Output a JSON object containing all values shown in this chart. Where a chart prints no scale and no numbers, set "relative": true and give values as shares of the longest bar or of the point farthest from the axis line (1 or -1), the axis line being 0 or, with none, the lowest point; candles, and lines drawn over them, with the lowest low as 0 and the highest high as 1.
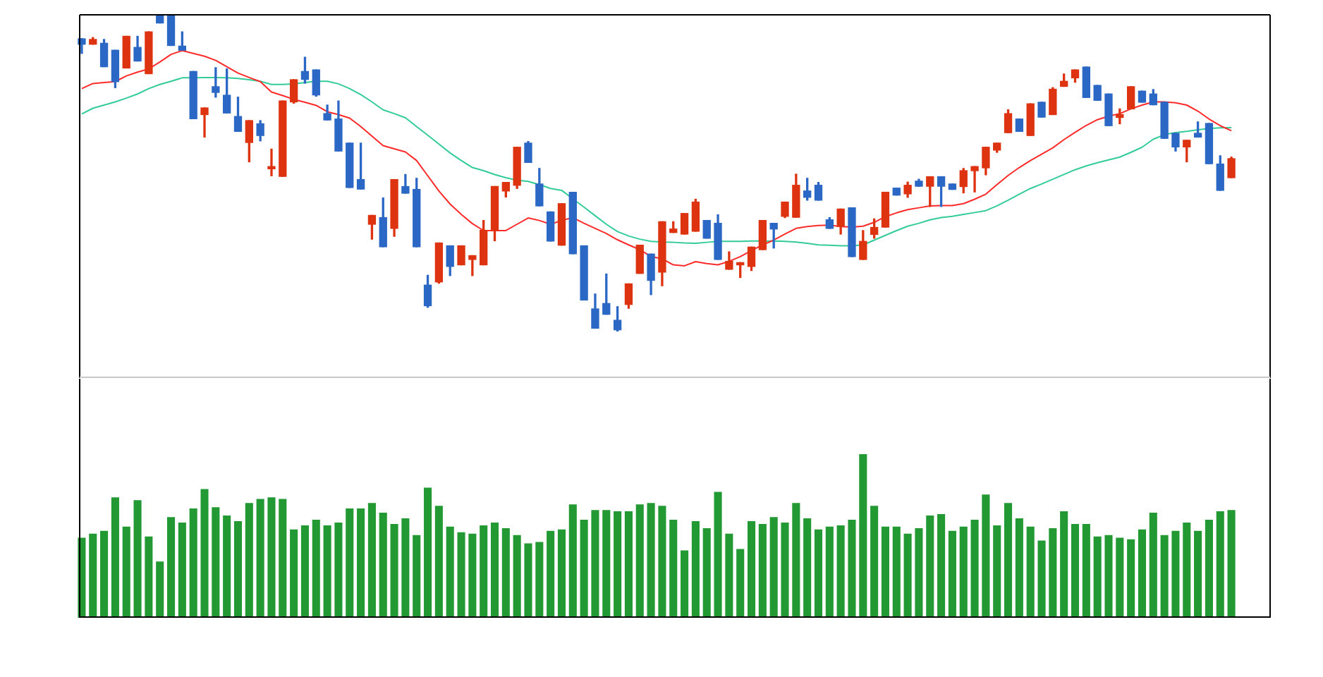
{
  "chart_data": [
    {
      "type": "candlestick",
      "relative": true,
      "categories": [
        null,
        null,
        null,
        null,
        null,
        null,
        null,
        null,
        null,
        null,
        null,
        null,
        null,
        null,
        null,
        null,
        null,
        null,
        null,
        null,
        null,
        null,
        null,
        null,
        null,
        null,
        null,
        null,
        null,
        null,
        null,
        null,
        null,
        null,
        null,
        null,
        null,
        null,
        null,
        null,
        null,
        null,
        null,
        null,
        null,
        null,
        null,
        null,
        null,
        null,
        null,
        null,
        null,
        null,
        null,
        null,
        null,
        null,
        null,
        null,
        null,
        null,
        null,
        null,
        null,
        null,
        null,
        null,
        null,
        null,
        null,
        null,
        null,
        null,
        null,
        null,
        null,
        null,
        null,
        null,
        null,
        null,
        null,
        null,
        null,
        null,
        null,
        null,
        null,
        null,
        null,
        null,
        null,
        null,
        null,
        null,
        null,
        null,
        null,
        null,
        null,
        null,
        null,
        null
      ],
      "ohlc": [
        [
          0.922,
          0.923,
          0.876,
          0.905
        ],
        [
          0.905,
          0.926,
          0.905,
          0.92
        ],
        [
          0.908,
          0.92,
          0.834,
          0.834
        ],
        [
          0.886,
          0.886,
          0.768,
          0.787
        ],
        [
          0.83,
          0.93,
          0.83,
          0.93
        ],
        [
          0.895,
          0.93,
          0.852,
          0.852
        ],
        [
          0.812,
          0.944,
          0.812,
          0.944
        ],
        [
          1,
          1,
          0.972,
          0.972
        ],
        [
          1,
          1,
          0.901,
          0.901
        ],
        [
          0.899,
          0.944,
          0.886,
          0.886
        ],
        [
          0.819,
          0.819,
          0.67,
          0.67
        ],
        [
          0.683,
          0.704,
          0.612,
          0.704
        ],
        [
          0.771,
          0.831,
          0.738,
          0.753
        ],
        [
          0.744,
          0.827,
          0.688,
          0.688
        ],
        [
          0.677,
          0.738,
          0.63,
          0.63
        ],
        [
          0.595,
          0.664,
          0.534,
          0.664
        ],
        [
          0.654,
          0.664,
          0.6,
          0.617
        ],
        [
          0.512,
          0.574,
          0.49,
          0.519
        ],
        [
          0.488,
          0.726,
          0.488,
          0.726
        ],
        [
          0.723,
          0.793,
          0.719,
          0.793
        ],
        [
          0.819,
          0.864,
          0.782,
          0.794
        ],
        [
          0.824,
          0.824,
          0.741,
          0.745
        ],
        [
          0.686,
          0.713,
          0.666,
          0.666
        ],
        [
          0.669,
          0.726,
          0.568,
          0.568
        ],
        [
          0.593,
          0.593,
          0.453,
          0.453
        ],
        [
          0.478,
          0.593,
          0.448,
          0.448
        ],
        [
          0.337,
          0.365,
          0.29,
          0.365
        ],
        [
          0.358,
          0.42,
          0.266,
          0.266
        ],
        [
          0.324,
          0.478,
          0.299,
          0.478
        ],
        [
          0.456,
          0.494,
          0.435,
          0.435
        ],
        [
          0.447,
          0.482,
          0.266,
          0.266
        ],
        [
          0.145,
          0.176,
          0.075,
          0.08
        ],
        [
          0.155,
          0.278,
          0.151,
          0.278
        ],
        [
          0.269,
          0.269,
          0.175,
          0.204
        ],
        [
          0.209,
          0.269,
          0.209,
          0.269
        ],
        [
          0.226,
          0.238,
          0.175,
          0.238
        ],
        [
          0.209,
          0.349,
          0.209,
          0.318
        ],
        [
          0.318,
          0.456,
          0.285,
          0.456
        ],
        [
          0.442,
          0.469,
          0.423,
          0.469
        ],
        [
          0.46,
          0.58,
          0.45,
          0.58
        ],
        [
          0.593,
          0.598,
          0.532,
          0.532
        ],
        [
          0.464,
          0.513,
          0.395,
          0.395
        ],
        [
          0.376,
          0.376,
          0.284,
          0.284
        ],
        [
          0.271,
          0.402,
          0.271,
          0.402
        ],
        [
          0.438,
          0.438,
          0.244,
          0.244
        ],
        [
          0.269,
          0.269,
          0.098,
          0.098
        ],
        [
          0.07,
          0.117,
          0.009,
          0.009
        ],
        [
          0.087,
          0.18,
          0.053,
          0.053
        ],
        [
          0.034,
          0.077,
          0,
          0.004
        ],
        [
          0.084,
          0.149,
          0.072,
          0.149
        ],
        [
          0.182,
          0.271,
          0.182,
          0.271
        ],
        [
          0.243,
          0.243,
          0.115,
          0.16
        ],
        [
          0.186,
          0.345,
          0.143,
          0.345
        ],
        [
          0.311,
          0.345,
          0.311,
          0.322
        ],
        [
          0.306,
          0.371,
          0.306,
          0.371
        ],
        [
          0.315,
          0.416,
          0.315,
          0.407
        ],
        [
          0.349,
          0.349,
          0.293,
          0.293
        ],
        [
          0.34,
          0.367,
          0.226,
          0.226
        ],
        [
          0.195,
          0.25,
          0.195,
          0.22
        ],
        [
          0.209,
          0.216,
          0.169,
          0.216
        ],
        [
          0.204,
          0.265,
          0.191,
          0.265
        ],
        [
          0.257,
          0.349,
          0.257,
          0.349
        ],
        [
          0.34,
          0.34,
          0.262,
          0.322
        ],
        [
          0.362,
          0.407,
          0.358,
          0.407
        ],
        [
          0.359,
          0.495,
          0.359,
          0.46
        ],
        [
          0.442,
          0.482,
          0.413,
          0.422
        ],
        [
          0.46,
          0.469,
          0.413,
          0.413
        ],
        [
          0.351,
          0.358,
          0.324,
          0.324
        ],
        [
          0.331,
          0.385,
          0.306,
          0.385
        ],
        [
          0.389,
          0.389,
          0.235,
          0.235
        ],
        [
          0.226,
          0.317,
          0.226,
          0.283
        ],
        [
          0.305,
          0.354,
          0.293,
          0.327
        ],
        [
          0.328,
          0.438,
          0.328,
          0.438
        ],
        [
          0.451,
          0.451,
          0.429,
          0.429
        ],
        [
          0.433,
          0.47,
          0.422,
          0.46
        ],
        [
          0.473,
          0.479,
          0.457,
          0.457
        ],
        [
          0.457,
          0.487,
          0.393,
          0.487
        ],
        [
          0.487,
          0.487,
          0.393,
          0.457
        ],
        [
          0.464,
          0.464,
          0.447,
          0.447
        ],
        [
          0.456,
          0.513,
          0.436,
          0.506
        ],
        [
          0.506,
          0.519,
          0.439,
          0.519
        ],
        [
          0.515,
          0.58,
          0.493,
          0.58
        ],
        [
          0.571,
          0.593,
          0.564,
          0.593
        ],
        [
          0.626,
          0.698,
          0.626,
          0.686
        ],
        [
          0.669,
          0.669,
          0.63,
          0.63
        ],
        [
          0.617,
          0.717,
          0.617,
          0.717
        ],
        [
          0.722,
          0.722,
          0.675,
          0.675
        ],
        [
          0.683,
          0.768,
          0.683,
          0.763
        ],
        [
          0.772,
          0.811,
          0.772,
          0.788
        ],
        [
          0.799,
          0.824,
          0.785,
          0.824
        ],
        [
          0.833,
          0.833,
          0.737,
          0.737
        ],
        [
          0.775,
          0.775,
          0.728,
          0.728
        ],
        [
          0.748,
          0.748,
          0.648,
          0.648
        ],
        [
          0.674,
          0.701,
          0.654,
          0.683
        ],
        [
          0.701,
          0.771,
          0.701,
          0.771
        ],
        [
          0.757,
          0.757,
          0.722,
          0.722
        ],
        [
          0.748,
          0.762,
          0.714,
          0.714
        ],
        [
          0.722,
          0.722,
          0.608,
          0.608
        ],
        [
          0.624,
          0.624,
          0.568,
          0.581
        ],
        [
          0.581,
          0.602,
          0.534,
          0.602
        ],
        [
          0.624,
          0.66,
          0.612,
          0.612
        ],
        [
          0.655,
          0.655,
          0.528,
          0.528
        ],
        [
          0.527,
          0.553,
          0.444,
          0.444
        ],
        [
          0.484,
          0.549,
          0.484,
          0.544
        ]
      ],
      "colors": [
        "#2b67c5",
        "#dd3311",
        "#2b67c5",
        "#2b67c5",
        "#dd3311",
        "#2b67c5",
        "#dd3311",
        "#2b67c5",
        "#2b67c5",
        "#2b67c5",
        "#2b67c5",
        "#dd3311",
        "#2b67c5",
        "#2b67c5",
        "#2b67c5",
        "#dd3311",
        "#2b67c5",
        "#dd3311",
        "#dd3311",
        "#dd3311",
        "#2b67c5",
        "#2b67c5",
        "#2b67c5",
        "#2b67c5",
        "#2b67c5",
        "#2b67c5",
        "#dd3311",
        "#2b67c5",
        "#dd3311",
        "#2b67c5",
        "#2b67c5",
        "#2b67c5",
        "#dd3311",
        "#2b67c5",
        "#dd3311",
        "#dd3311",
        "#dd3311",
        "#dd3311",
        "#dd3311",
        "#dd3311",
        "#2b67c5",
        "#2b67c5",
        "#2b67c5",
        "#dd3311",
        "#2b67c5",
        "#2b67c5",
        "#2b67c5",
        "#2b67c5",
        "#2b67c5",
        "#dd3311",
        "#dd3311",
        "#2b67c5",
        "#dd3311",
        "#dd3311",
        "#dd3311",
        "#dd3311",
        "#2b67c5",
        "#2b67c5",
        "#dd3311",
        "#dd3311",
        "#dd3311",
        "#dd3311",
        "#2b67c5",
        "#dd3311",
        "#dd3311",
        "#2b67c5",
        "#2b67c5",
        "#2b67c5",
        "#dd3311",
        "#2b67c5",
        "#dd3311",
        "#dd3311",
        "#dd3311",
        "#2b67c5",
        "#dd3311",
        "#2b67c5",
        "#dd3311",
        "#2b67c5",
        "#2b67c5",
        "#dd3311",
        "#dd3311",
        "#dd3311",
        "#dd3311",
        "#dd3311",
        "#2b67c5",
        "#dd3311",
        "#2b67c5",
        "#dd3311",
        "#dd3311",
        "#dd3311",
        "#2b67c5",
        "#2b67c5",
        "#2b67c5",
        "#dd3311",
        "#dd3311",
        "#2b67c5",
        "#2b67c5",
        "#2b67c5",
        "#2b67c5",
        "#dd3311",
        "#2b67c5",
        "#2b67c5",
        "#2b67c5",
        "#dd3311"
      ],
      "series": [
        {
          "type": "line",
          "color": "#ff2a2a",
          "values": [
            0.765,
            0.781,
            0.784,
            0.787,
            0.805,
            0.817,
            0.827,
            0.849,
            0.873,
            0.885,
            0.876,
            0.867,
            0.854,
            0.834,
            0.814,
            0.8,
            0.787,
            0.754,
            0.743,
            0.731,
            0.722,
            0.712,
            0.692,
            0.683,
            0.672,
            0.645,
            0.615,
            0.585,
            0.575,
            0.565,
            0.538,
            0.49,
            0.442,
            0.401,
            0.368,
            0.339,
            0.317,
            0.317,
            0.317,
            0.337,
            0.357,
            0.349,
            0.337,
            0.349,
            0.358,
            0.34,
            0.324,
            0.308,
            0.288,
            0.272,
            0.257,
            0.235,
            0.228,
            0.209,
            0.206,
            0.219,
            0.213,
            0.209,
            0.22,
            0.235,
            0.254,
            0.272,
            0.287,
            0.306,
            0.324,
            0.33,
            0.333,
            0.334,
            0.33,
            0.328,
            0.331,
            0.343,
            0.361,
            0.373,
            0.383,
            0.389,
            0.395,
            0.396,
            0.396,
            0.402,
            0.416,
            0.432,
            0.462,
            0.491,
            0.516,
            0.538,
            0.558,
            0.578,
            0.604,
            0.627,
            0.649,
            0.667,
            0.678,
            0.686,
            0.701,
            0.713,
            0.723,
            0.723,
            0.72,
            0.713,
            0.694,
            0.669,
            0.648,
            0.632
          ]
        },
        {
          "type": "line",
          "color": "#33cc99",
          "values": [
            0.685,
            0.703,
            0.713,
            0.723,
            0.735,
            0.748,
            0.765,
            0.778,
            0.788,
            0.799,
            0.799,
            0.8,
            0.8,
            0.799,
            0.797,
            0.793,
            0.788,
            0.778,
            0.778,
            0.78,
            0.784,
            0.788,
            0.788,
            0.78,
            0.765,
            0.746,
            0.723,
            0.698,
            0.686,
            0.673,
            0.645,
            0.618,
            0.59,
            0.562,
            0.538,
            0.516,
            0.506,
            0.494,
            0.484,
            0.476,
            0.472,
            0.462,
            0.45,
            0.444,
            0.417,
            0.391,
            0.364,
            0.337,
            0.314,
            0.3,
            0.29,
            0.283,
            0.281,
            0.28,
            0.278,
            0.277,
            0.28,
            0.283,
            0.283,
            0.283,
            0.284,
            0.284,
            0.284,
            0.283,
            0.281,
            0.277,
            0.272,
            0.271,
            0.269,
            0.269,
            0.272,
            0.287,
            0.302,
            0.317,
            0.331,
            0.34,
            0.351,
            0.358,
            0.362,
            0.368,
            0.374,
            0.38,
            0.395,
            0.413,
            0.432,
            0.45,
            0.464,
            0.479,
            0.494,
            0.509,
            0.521,
            0.531,
            0.54,
            0.549,
            0.564,
            0.58,
            0.605,
            0.62,
            0.626,
            0.63,
            0.635,
            0.639,
            0.641,
            0.642
          ]
        }
      ]
    },
    {
      "type": "bar",
      "relative": true,
      "color": "#229933",
      "categories": [
        null,
        null,
        null,
        null,
        null,
        null,
        null,
        null,
        null,
        null,
        null,
        null,
        null,
        null,
        null,
        null,
        null,
        null,
        null,
        null,
        null,
        null,
        null,
        null,
        null,
        null,
        null,
        null,
        null,
        null,
        null,
        null,
        null,
        null,
        null,
        null,
        null,
        null,
        null,
        null,
        null,
        null,
        null,
        null,
        null,
        null,
        null,
        null,
        null,
        null,
        null,
        null,
        null,
        null,
        null,
        null,
        null,
        null,
        null,
        null,
        null,
        null,
        null,
        null,
        null,
        null,
        null,
        null,
        null,
        null,
        null,
        null,
        null,
        null,
        null,
        null,
        null,
        null,
        null,
        null,
        null,
        null,
        null,
        null,
        null,
        null,
        null,
        null,
        null,
        null,
        null,
        null,
        null,
        null,
        null,
        null,
        null,
        null,
        null,
        null,
        null,
        null,
        null,
        null
      ],
      "values": [
        0.489,
        0.514,
        0.531,
        0.736,
        0.557,
        0.719,
        0.497,
        0.344,
        0.616,
        0.582,
        0.668,
        0.787,
        0.676,
        0.625,
        0.591,
        0.702,
        0.727,
        0.736,
        0.727,
        0.54,
        0.565,
        0.599,
        0.565,
        0.582,
        0.668,
        0.668,
        0.702,
        0.642,
        0.574,
        0.608,
        0.506,
        0.795,
        0.685,
        0.557,
        0.523,
        0.514,
        0.565,
        0.582,
        0.548,
        0.506,
        0.455,
        0.463,
        0.531,
        0.54,
        0.693,
        0.599,
        0.659,
        0.659,
        0.651,
        0.651,
        0.693,
        0.702,
        0.685,
        0.599,
        0.412,
        0.591,
        0.548,
        0.77,
        0.514,
        0.42,
        0.591,
        0.574,
        0.616,
        0.582,
        0.702,
        0.608,
        0.54,
        0.557,
        0.565,
        0.599,
        1,
        0.685,
        0.557,
        0.557,
        0.514,
        0.548,
        0.625,
        0.634,
        0.531,
        0.557,
        0.599,
        0.753,
        0.565,
        0.702,
        0.608,
        0.557,
        0.472,
        0.548,
        0.651,
        0.574,
        0.574,
        0.497,
        0.506,
        0.489,
        0.48,
        0.54,
        0.642,
        0.506,
        0.531,
        0.582,
        0.531,
        0.599,
        0.651,
        0.659
      ]
    }
  ]
}
